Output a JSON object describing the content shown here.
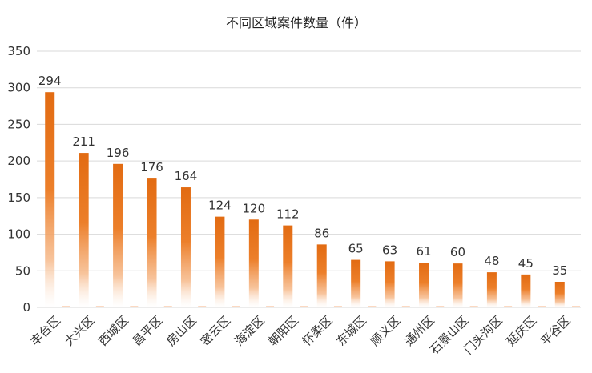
{
  "chart_data": {
    "type": "bar",
    "title": "不同区域案件数量（件）",
    "xlabel": "",
    "ylabel": "",
    "ylim": [
      0,
      350
    ],
    "yticks": [
      0,
      50,
      100,
      150,
      200,
      250,
      300,
      350
    ],
    "grid": true,
    "legend": "none",
    "categories": [
      "丰台区",
      "大兴区",
      "西城区",
      "昌平区",
      "房山区",
      "密云区",
      "海淀区",
      "朝阳区",
      "怀柔区",
      "东城区",
      "顺义区",
      "通州区",
      "石景山区",
      "门头沟区",
      "延庆区",
      "平谷区"
    ],
    "values": [
      294,
      211,
      196,
      176,
      164,
      124,
      120,
      112,
      86,
      65,
      63,
      61,
      60,
      48,
      45,
      35
    ],
    "bar_color": "#e8731a"
  }
}
